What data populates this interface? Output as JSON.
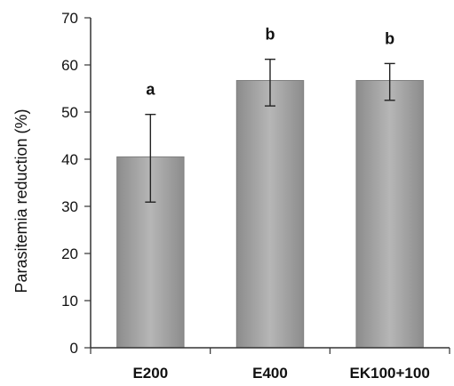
{
  "chart_data": {
    "type": "bar",
    "title": "",
    "xlabel": "",
    "ylabel": "Parasitemia reduction (%)",
    "ylim": [
      0,
      70
    ],
    "yticks": [
      "0",
      "10",
      "20",
      "30",
      "40",
      "50",
      "60",
      "70"
    ],
    "categories": [
      "E200",
      "E400",
      "EK100+100"
    ],
    "values": [
      40.5,
      56.7,
      56.7
    ],
    "error_low": [
      30.9,
      51.3,
      52.5
    ],
    "error_high": [
      49.5,
      61.2,
      60.3
    ],
    "significance": [
      "a",
      "b",
      "b"
    ],
    "grid": false,
    "legend": "none",
    "colors": {
      "bar": "#a6a6a6",
      "bar_edge": "#7f7f7f",
      "axis": "#333333",
      "text": "#111111"
    }
  }
}
